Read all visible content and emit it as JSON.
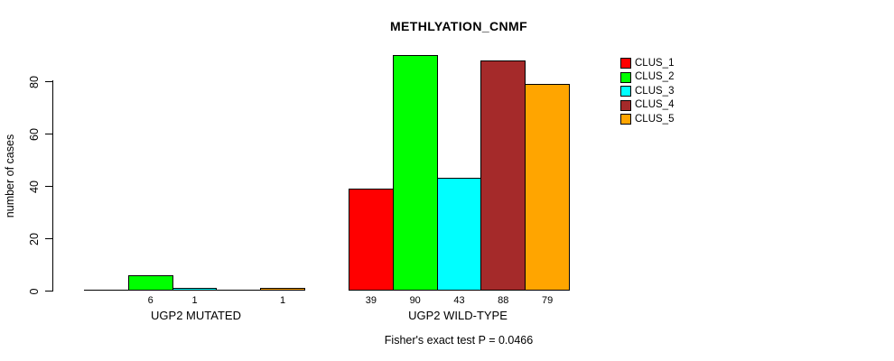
{
  "chart_data": {
    "type": "bar",
    "title": "METHLYATION_CNMF",
    "ylabel": "number of cases",
    "xlabel": "",
    "groups": [
      "UGP2 MUTATED",
      "UGP2 WILD-TYPE"
    ],
    "series": [
      {
        "name": "CLUS_1",
        "color": "#FF0000",
        "values": [
          0,
          39
        ]
      },
      {
        "name": "CLUS_2",
        "color": "#00FF00",
        "values": [
          6,
          90
        ]
      },
      {
        "name": "CLUS_3",
        "color": "#00FFFF",
        "values": [
          1,
          43
        ]
      },
      {
        "name": "CLUS_4",
        "color": "#A52A2A",
        "values": [
          0,
          88
        ]
      },
      {
        "name": "CLUS_5",
        "color": "#FFA500",
        "values": [
          1,
          79
        ]
      }
    ],
    "value_labels": [
      [
        "",
        "6",
        "1",
        "",
        "1"
      ],
      [
        "39",
        "90",
        "43",
        "88",
        "79"
      ]
    ],
    "yticks": [
      0,
      20,
      40,
      60,
      80
    ],
    "ylim": [
      0,
      92
    ],
    "grid": false,
    "legend_position": "right-top",
    "annotation": "Fisher's exact test P = 0.0466",
    "axis_color": "#000000",
    "background_color": "#FFFFFF"
  }
}
